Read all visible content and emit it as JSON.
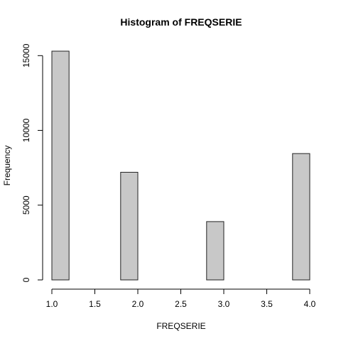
{
  "chart_data": {
    "type": "bar",
    "title": "Histogram of FREQSERIE",
    "xlabel": "FREQSERIE",
    "ylabel": "Frequency",
    "bin_edges": [
      1.0,
      1.2,
      1.4,
      1.6,
      1.8,
      2.0,
      2.2,
      2.4,
      2.6,
      2.8,
      3.0,
      3.2,
      3.4,
      3.6,
      3.8,
      4.0
    ],
    "values": [
      15300,
      0,
      0,
      0,
      7200,
      0,
      0,
      0,
      0,
      3900,
      0,
      0,
      0,
      0,
      8450
    ],
    "xlim": [
      1.0,
      4.0
    ],
    "ylim": [
      0,
      15300
    ],
    "x_ticks": [
      1.0,
      1.5,
      2.0,
      2.5,
      3.0,
      3.5,
      4.0
    ],
    "x_tick_labels": [
      "1.0",
      "1.5",
      "2.0",
      "2.5",
      "3.0",
      "3.5",
      "4.0"
    ],
    "y_ticks": [
      0,
      5000,
      10000,
      15000
    ],
    "y_tick_labels": [
      "0",
      "5000",
      "10000",
      "15000"
    ],
    "bar_color": "#c8c8c8",
    "grid": false
  }
}
